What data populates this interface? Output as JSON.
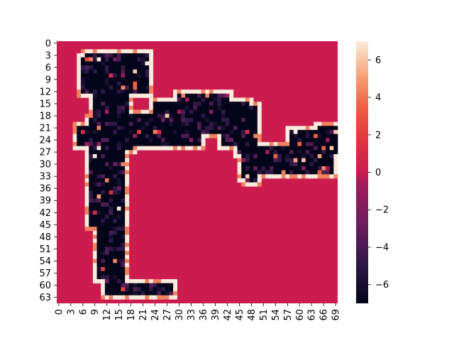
{
  "chart_data": {
    "type": "heatmap",
    "title": "",
    "xlabel": "",
    "ylabel": "",
    "n_cols": 70,
    "n_rows": 65,
    "x_tick_labels": [
      "0",
      "3",
      "6",
      "9",
      "12",
      "15",
      "18",
      "21",
      "24",
      "27",
      "30",
      "33",
      "36",
      "39",
      "42",
      "45",
      "48",
      "51",
      "54",
      "57",
      "60",
      "63",
      "66",
      "69"
    ],
    "y_tick_labels": [
      "0",
      "3",
      "6",
      "9",
      "12",
      "15",
      "18",
      "21",
      "24",
      "27",
      "30",
      "33",
      "36",
      "39",
      "42",
      "45",
      "48",
      "51",
      "54",
      "57",
      "60",
      "63"
    ],
    "colorbar": {
      "ticks": [
        "6",
        "4",
        "2",
        "0",
        "−2",
        "−4",
        "−6"
      ],
      "tick_values": [
        6,
        4,
        2,
        0,
        -2,
        -4,
        -6
      ],
      "vmin": -7,
      "vmax": 7,
      "colormap": "rocket"
    },
    "background_value": 0,
    "figure_description_values": {
      "figure_value": -7,
      "outline_value": 7
    }
  }
}
